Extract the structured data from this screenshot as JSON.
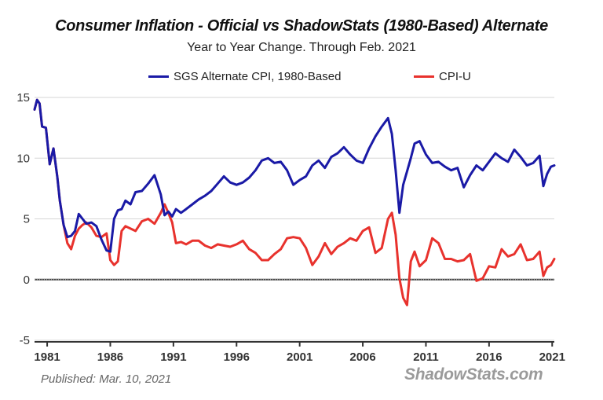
{
  "chart_data": {
    "type": "line",
    "title": "Consumer Inflation - Official vs ShadowStats (1980-Based) Alternate",
    "subtitle": "Year to Year Change. Through Feb. 2021",
    "x_tick_labels": [
      "1981",
      "1986",
      "1991",
      "1996",
      "2001",
      "2006",
      "2011",
      "2016",
      "2021"
    ],
    "x_ticks": [
      1981,
      1986,
      1991,
      1996,
      2001,
      2006,
      2011,
      2016,
      2021
    ],
    "xlim": [
      1980.0,
      2021.17
    ],
    "y_ticks": [
      15,
      10,
      5,
      0,
      -5
    ],
    "y_tick_labels": [
      "15",
      "10",
      "5",
      "0",
      "-5"
    ],
    "ylim": [
      -5,
      15
    ],
    "grid": true,
    "legend_position": "top",
    "series": [
      {
        "name": "SGS Alternate CPI, 1980-Based",
        "color": "#1a1aa6",
        "x": [
          1980.0,
          1980.2,
          1980.4,
          1980.6,
          1980.9,
          1981.2,
          1981.5,
          1981.8,
          1982.0,
          1982.3,
          1982.6,
          1982.9,
          1983.2,
          1983.5,
          1983.8,
          1984.1,
          1984.5,
          1984.9,
          1985.3,
          1985.7,
          1986.0,
          1986.3,
          1986.6,
          1986.9,
          1987.2,
          1987.6,
          1988.0,
          1988.5,
          1989.0,
          1989.5,
          1990.0,
          1990.3,
          1990.6,
          1990.9,
          1991.2,
          1991.6,
          1992.0,
          1992.5,
          1993.0,
          1993.5,
          1994.0,
          1994.5,
          1995.0,
          1995.5,
          1996.0,
          1996.5,
          1997.0,
          1997.5,
          1998.0,
          1998.5,
          1999.0,
          1999.5,
          2000.0,
          2000.5,
          2001.0,
          2001.5,
          2002.0,
          2002.5,
          2003.0,
          2003.5,
          2004.0,
          2004.5,
          2005.0,
          2005.5,
          2006.0,
          2006.5,
          2007.0,
          2007.5,
          2008.0,
          2008.3,
          2008.6,
          2008.9,
          2009.2,
          2009.5,
          2009.8,
          2010.1,
          2010.5,
          2011.0,
          2011.5,
          2012.0,
          2012.5,
          2013.0,
          2013.5,
          2014.0,
          2014.5,
          2015.0,
          2015.5,
          2016.0,
          2016.5,
          2017.0,
          2017.5,
          2018.0,
          2018.5,
          2019.0,
          2019.5,
          2020.0,
          2020.3,
          2020.6,
          2020.9,
          2021.17
        ],
        "values": [
          14.0,
          14.8,
          14.5,
          12.6,
          12.5,
          9.5,
          10.8,
          8.5,
          6.5,
          4.5,
          3.5,
          3.6,
          4.0,
          5.4,
          5.0,
          4.6,
          4.7,
          4.4,
          3.3,
          2.4,
          2.3,
          5.0,
          5.7,
          5.8,
          6.5,
          6.2,
          7.2,
          7.3,
          7.9,
          8.6,
          7.0,
          5.3,
          5.6,
          5.2,
          5.8,
          5.5,
          5.8,
          6.2,
          6.6,
          6.9,
          7.3,
          7.9,
          8.5,
          8.0,
          7.8,
          8.0,
          8.4,
          9.0,
          9.8,
          10.0,
          9.6,
          9.7,
          9.0,
          7.8,
          8.2,
          8.5,
          9.4,
          9.8,
          9.2,
          10.1,
          10.4,
          10.9,
          10.3,
          9.8,
          9.6,
          10.8,
          11.8,
          12.6,
          13.3,
          12.0,
          9.0,
          5.5,
          7.8,
          8.9,
          10.0,
          11.2,
          11.4,
          10.3,
          9.6,
          9.7,
          9.3,
          9.0,
          9.2,
          7.6,
          8.6,
          9.4,
          9.0,
          9.7,
          10.4,
          10.0,
          9.7,
          10.7,
          10.1,
          9.4,
          9.6,
          10.2,
          7.7,
          8.7,
          9.3,
          9.4
        ]
      },
      {
        "name": "CPI-U",
        "color": "#e8322d",
        "x": [
          1980.0,
          1980.2,
          1980.4,
          1980.6,
          1980.9,
          1981.2,
          1981.5,
          1981.8,
          1982.0,
          1982.3,
          1982.6,
          1982.9,
          1983.2,
          1983.5,
          1983.8,
          1984.1,
          1984.5,
          1984.9,
          1985.3,
          1985.7,
          1986.0,
          1986.3,
          1986.6,
          1986.9,
          1987.2,
          1987.6,
          1988.0,
          1988.5,
          1989.0,
          1989.5,
          1990.0,
          1990.3,
          1990.6,
          1990.9,
          1991.2,
          1991.6,
          1992.0,
          1992.5,
          1993.0,
          1993.5,
          1994.0,
          1994.5,
          1995.0,
          1995.5,
          1996.0,
          1996.5,
          1997.0,
          1997.5,
          1998.0,
          1998.5,
          1999.0,
          1999.5,
          2000.0,
          2000.5,
          2001.0,
          2001.5,
          2002.0,
          2002.5,
          2003.0,
          2003.5,
          2004.0,
          2004.5,
          2005.0,
          2005.5,
          2006.0,
          2006.5,
          2007.0,
          2007.5,
          2008.0,
          2008.3,
          2008.6,
          2008.9,
          2009.2,
          2009.5,
          2009.8,
          2010.1,
          2010.5,
          2011.0,
          2011.5,
          2012.0,
          2012.5,
          2013.0,
          2013.5,
          2014.0,
          2014.5,
          2015.0,
          2015.5,
          2016.0,
          2016.5,
          2017.0,
          2017.5,
          2018.0,
          2018.5,
          2019.0,
          2019.5,
          2020.0,
          2020.3,
          2020.6,
          2020.9,
          2021.17
        ],
        "values": [
          14.0,
          14.8,
          14.5,
          12.6,
          12.5,
          9.5,
          10.8,
          8.5,
          6.5,
          4.5,
          3.0,
          2.5,
          3.6,
          4.2,
          4.5,
          4.7,
          4.3,
          3.6,
          3.5,
          3.8,
          1.6,
          1.2,
          1.5,
          4.0,
          4.4,
          4.2,
          4.0,
          4.8,
          5.0,
          4.6,
          5.5,
          6.2,
          5.5,
          4.7,
          3.0,
          3.1,
          2.9,
          3.2,
          3.2,
          2.8,
          2.6,
          2.9,
          2.8,
          2.7,
          2.9,
          3.2,
          2.5,
          2.2,
          1.6,
          1.6,
          2.1,
          2.5,
          3.4,
          3.5,
          3.4,
          2.6,
          1.2,
          1.9,
          3.0,
          2.1,
          2.7,
          3.0,
          3.4,
          3.2,
          4.0,
          4.3,
          2.2,
          2.6,
          5.0,
          5.5,
          3.7,
          0.1,
          -1.5,
          -2.1,
          1.5,
          2.3,
          1.1,
          1.6,
          3.4,
          3.0,
          1.7,
          1.7,
          1.5,
          1.6,
          2.1,
          -0.1,
          0.1,
          1.1,
          1.0,
          2.5,
          1.9,
          2.1,
          2.9,
          1.6,
          1.7,
          2.3,
          0.3,
          1.0,
          1.2,
          1.7
        ]
      }
    ]
  },
  "footer": {
    "published": "Published: Mar. 10, 2021",
    "brand": "ShadowStats.com"
  }
}
